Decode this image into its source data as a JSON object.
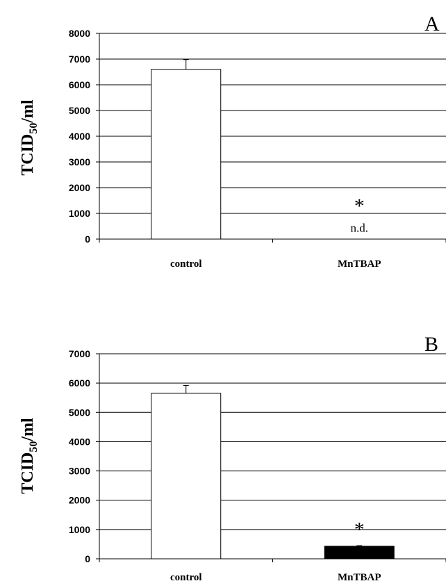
{
  "chart_data": [
    {
      "type": "bar",
      "panel_label": "A",
      "categories": [
        "control",
        "MnTBAP"
      ],
      "values": [
        6600,
        0
      ],
      "errors": [
        380,
        0
      ],
      "bar_colors": [
        "#ffffff",
        "#000000"
      ],
      "ylabel_main": "TCID",
      "ylabel_sub": "50",
      "ylabel_tail": "/ml",
      "ylim": [
        0,
        8000
      ],
      "yticks": [
        0,
        1000,
        2000,
        3000,
        4000,
        5000,
        6000,
        7000,
        8000
      ],
      "grid": true,
      "annotations": [
        {
          "category": "MnTBAP",
          "text": "*",
          "y": 1400
        },
        {
          "category": "MnTBAP",
          "text": "n.d.",
          "y": 450
        }
      ]
    },
    {
      "type": "bar",
      "panel_label": "B",
      "categories": [
        "control",
        "MnTBAP"
      ],
      "values": [
        5650,
        430
      ],
      "errors": [
        270,
        20
      ],
      "bar_colors": [
        "#ffffff",
        "#000000"
      ],
      "ylabel_main": "TCID",
      "ylabel_sub": "50",
      "ylabel_tail": "/ml",
      "ylim": [
        0,
        7000
      ],
      "yticks": [
        0,
        1000,
        2000,
        3000,
        4000,
        5000,
        6000,
        7000
      ],
      "grid": true,
      "annotations": [
        {
          "category": "MnTBAP",
          "text": "*",
          "y": 1100
        }
      ]
    }
  ]
}
